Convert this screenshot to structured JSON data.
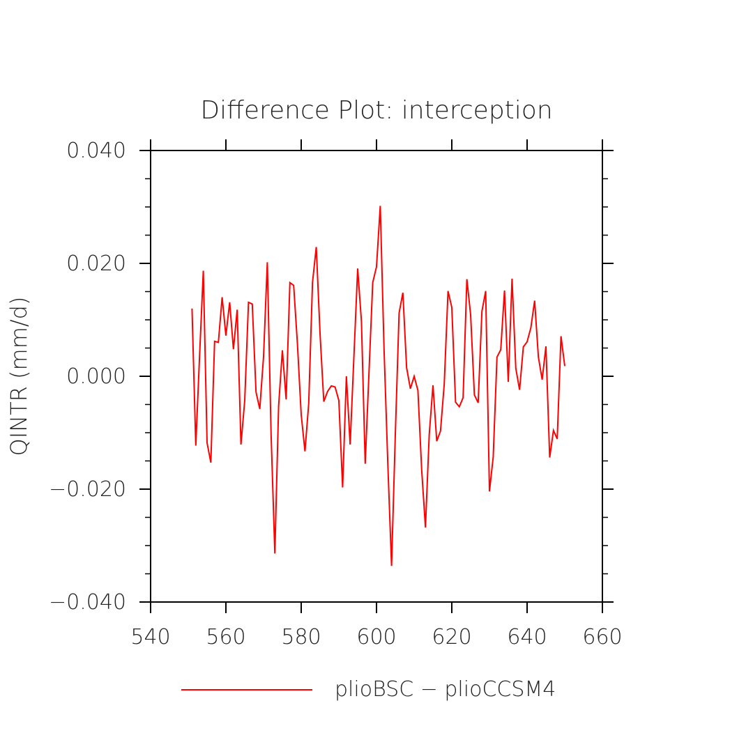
{
  "chart_data": {
    "type": "line",
    "title": "Difference Plot: interception",
    "xlabel": "",
    "ylabel": "QINTR  (mm/d)",
    "xlim": [
      540,
      660
    ],
    "ylim": [
      -0.04,
      0.04
    ],
    "x_ticks": [
      540,
      560,
      580,
      600,
      620,
      640,
      660
    ],
    "x_tick_labels": [
      "540",
      "560",
      "580",
      "600",
      "620",
      "640",
      "660"
    ],
    "y_ticks": [
      -0.04,
      -0.02,
      0.0,
      0.02,
      0.04
    ],
    "y_tick_labels": [
      "−0.040",
      "−0.020",
      "0.000",
      "0.020",
      "0.040"
    ],
    "grid": false,
    "legend_position": "bottom-center",
    "series": [
      {
        "name": "plioBSC − plioCCSM4",
        "color": "#ff0000",
        "x": [
          551,
          552,
          553,
          554,
          555,
          556,
          557,
          558,
          559,
          560,
          561,
          562,
          563,
          564,
          565,
          566,
          567,
          568,
          569,
          570,
          571,
          572,
          573,
          574,
          575,
          576,
          577,
          578,
          579,
          580,
          581,
          582,
          583,
          584,
          585,
          586,
          587,
          588,
          589,
          590,
          591,
          592,
          593,
          594,
          595,
          596,
          597,
          598,
          599,
          600,
          601,
          602,
          603,
          604,
          605,
          606,
          607,
          608,
          609,
          610,
          611,
          612,
          613,
          614,
          615,
          616,
          617,
          618,
          619,
          620,
          621,
          622,
          623,
          624,
          625,
          626,
          627,
          628,
          629,
          630,
          631,
          632,
          633,
          634,
          635,
          636,
          637,
          638,
          639,
          640,
          641,
          642,
          643,
          644,
          645,
          646,
          647,
          648,
          649,
          650
        ],
        "values": [
          0.012,
          -0.0123,
          0.0035,
          0.0187,
          -0.0118,
          -0.0153,
          0.0062,
          0.006,
          0.014,
          0.0072,
          0.0131,
          0.0048,
          0.0118,
          -0.0121,
          -0.0043,
          0.0131,
          0.0128,
          -0.0028,
          -0.0058,
          0.0035,
          0.0202,
          -0.0102,
          -0.0314,
          -0.0053,
          0.0046,
          -0.0041,
          0.0166,
          0.0161,
          0.0057,
          -0.0068,
          -0.0133,
          -0.0048,
          0.0166,
          0.0229,
          0.0076,
          -0.0045,
          -0.0027,
          -0.0017,
          -0.0019,
          -0.0043,
          -0.0197,
          0.0,
          -0.0121,
          0.0035,
          0.0191,
          0.0097,
          -0.0155,
          0.0006,
          0.0166,
          0.0194,
          0.0302,
          0.0049,
          -0.0154,
          -0.0336,
          -0.0103,
          0.0112,
          0.0148,
          0.0015,
          -0.0022,
          0.0,
          -0.0025,
          -0.0166,
          -0.0268,
          -0.0104,
          -0.0016,
          -0.0115,
          -0.0097,
          -0.0013,
          0.0151,
          0.0122,
          -0.0046,
          -0.0054,
          -0.0038,
          0.0172,
          0.0109,
          -0.0033,
          -0.0047,
          0.0115,
          0.0151,
          -0.0204,
          -0.0143,
          0.0034,
          0.0047,
          0.0152,
          -0.001,
          0.0173,
          0.0014,
          -0.0024,
          0.0052,
          0.0061,
          0.0086,
          0.0134,
          0.0034,
          -0.0006,
          0.0053,
          -0.0144,
          -0.0096,
          -0.0111,
          0.0071,
          0.0018
        ]
      }
    ]
  }
}
